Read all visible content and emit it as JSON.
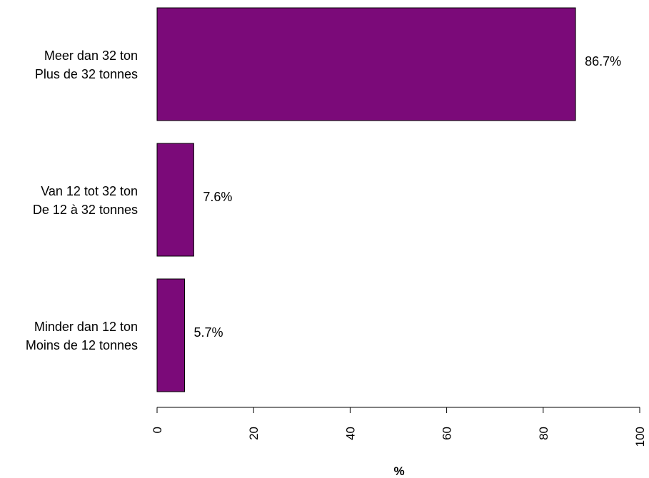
{
  "chart_data": {
    "type": "bar",
    "orientation": "horizontal",
    "categories": [
      [
        "Meer dan 32 ton",
        "Plus de 32 tonnes"
      ],
      [
        "Van 12 tot 32 ton",
        "De 12 à 32 tonnes"
      ],
      [
        "Minder dan 12 ton",
        "Moins de 12 tonnes"
      ]
    ],
    "values": [
      86.7,
      7.6,
      5.7
    ],
    "value_labels": [
      "86.7%",
      "7.6%",
      "5.7%"
    ],
    "xlabel": "%",
    "xlim": [
      0,
      100
    ],
    "xticks": [
      0,
      20,
      40,
      60,
      80,
      100
    ],
    "grid": false,
    "bar_color": "#7b0a79"
  }
}
